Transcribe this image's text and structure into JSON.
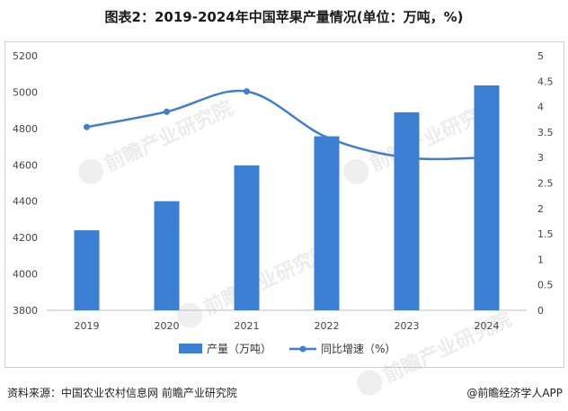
{
  "title": "图表2：2019-2024年中国苹果产量情况(单位：万吨，%)",
  "source": "资料来源：中国农业农村信息网 前瞻产业研究院",
  "credit": "@前瞻经济学人APP",
  "watermark": "前瞻产业研究院",
  "colors": {
    "bar": "#3a7fd4",
    "line": "#3f7fcf"
  },
  "chart_data": {
    "type": "bar",
    "categories": [
      "2019",
      "2020",
      "2021",
      "2022",
      "2023",
      "2024"
    ],
    "series": [
      {
        "name": "产量（万吨）",
        "type": "bar",
        "axis": "left",
        "values": [
          4240,
          4400,
          4597,
          4757,
          4889,
          5037
        ]
      },
      {
        "name": "同比增速（%）",
        "type": "line",
        "axis": "right",
        "values": [
          3.6,
          3.9,
          4.3,
          3.4,
          3.0,
          3.0
        ]
      }
    ],
    "y_left": {
      "min": 3800,
      "max": 5200,
      "ticks": [
        "3800",
        "4000",
        "4200",
        "4400",
        "4600",
        "4800",
        "5000",
        "5200"
      ]
    },
    "y_right": {
      "min": 0,
      "max": 5,
      "ticks": [
        "0",
        "0.5",
        "1",
        "1.5",
        "2",
        "2.5",
        "3",
        "3.5",
        "4",
        "4.5",
        "5"
      ]
    },
    "legend": {
      "placement": "bottom",
      "items": [
        "产量（万吨）",
        "同比增速（%）"
      ]
    },
    "grid": false
  }
}
